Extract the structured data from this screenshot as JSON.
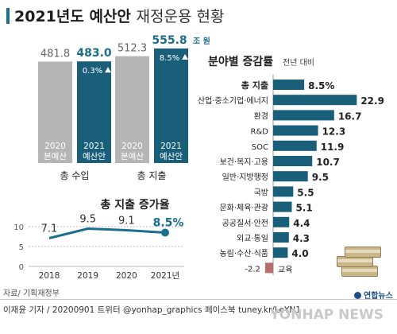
{
  "title": {
    "main": "2021년도 예산안",
    "sub": "재정운용 현황"
  },
  "source": "자료/ 기획재정부",
  "credit": "이재윤 기자 / 20200901  트위터 @yonhap_graphics  페이스북 tuney.kr/LeYN1",
  "logo_text": "연합뉴스",
  "watermark": "YONHAP NEWS",
  "colors": {
    "gray": "#b5b5b5",
    "teal": "#1a5f7a",
    "line": "#1a6e8e",
    "negative": "#b56f6f",
    "accent": "#1a6e8e"
  },
  "chart_data": [
    {
      "type": "bar",
      "title": "",
      "groups": [
        {
          "label": "총 수입",
          "bars": [
            {
              "year": "2020",
              "sublabel": "본예산",
              "value": 481.8,
              "value_text": "481.8",
              "color": "gray"
            },
            {
              "year": "2021",
              "sublabel": "예산안",
              "value": 483.0,
              "value_text": "483.0",
              "color": "teal",
              "rate": "0.3%"
            }
          ]
        },
        {
          "label": "총 지출",
          "bars": [
            {
              "year": "2020",
              "sublabel": "본예산",
              "value": 512.3,
              "value_text": "512.3",
              "color": "gray"
            },
            {
              "year": "2021",
              "sublabel": "예산안",
              "value": 555.8,
              "value_text": "555.8",
              "unit": "조 원",
              "color": "teal",
              "rate": "8.5%"
            }
          ]
        }
      ],
      "ylim": [
        0,
        600
      ]
    },
    {
      "type": "line",
      "title": "총 지출 증가율",
      "x": [
        "2018",
        "2019",
        "2020",
        "2021년"
      ],
      "values": [
        7.1,
        9.5,
        9.1,
        8.5
      ],
      "value_labels": [
        "7.1",
        "9.5",
        "9.1",
        "8.5%"
      ],
      "yticks": [
        10,
        5,
        0
      ],
      "ylim": [
        0,
        10
      ]
    },
    {
      "type": "bar",
      "orientation": "horizontal",
      "title": "분야별 증감률",
      "note": "전년 대비",
      "categories": [
        "총 지출",
        "산업·중소기업·에너지",
        "환경",
        "R&D",
        "SOC",
        "보건·복지·고용",
        "일반·지방행정",
        "국방",
        "문화·체육·관광",
        "공공질서·안전",
        "외교·통일",
        "농림·수산·식품",
        "교육"
      ],
      "values": [
        8.5,
        22.9,
        16.7,
        12.3,
        11.9,
        10.7,
        9.5,
        5.5,
        5.1,
        4.4,
        4.3,
        4.0,
        -2.2
      ],
      "value_labels": [
        "8.5%",
        "22.9",
        "16.7",
        "12.3",
        "11.9",
        "10.7",
        "9.5",
        "5.5",
        "5.1",
        "4.4",
        "4.3",
        "4.0",
        "-2.2"
      ]
    }
  ]
}
